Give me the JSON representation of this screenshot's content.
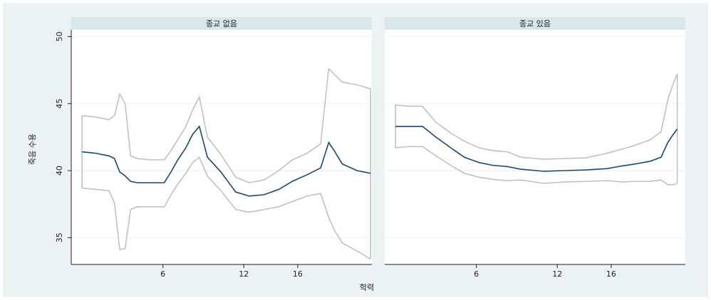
{
  "x_label": "학력",
  "y_label": "죽음 수용",
  "chart_data": [
    {
      "type": "line",
      "title": "종교 없음",
      "x": [
        0,
        1.0,
        2.0,
        2.4,
        2.8,
        3.2,
        3.6,
        4.1,
        5.1,
        6.1,
        6.6,
        7.1,
        7.7,
        8.2,
        8.7,
        9.3,
        10.3,
        11.4,
        12.4,
        13.5,
        14.6,
        15.6,
        16.7,
        17.7,
        18.3,
        18.7,
        19.3,
        20.4,
        21.4
      ],
      "series": [
        {
          "role": "mean",
          "color": "#1a476f",
          "values": [
            41.4,
            41.3,
            41.1,
            40.9,
            39.9,
            39.6,
            39.2,
            39.1,
            39.1,
            39.1,
            39.9,
            40.8,
            41.7,
            42.7,
            43.3,
            41.0,
            39.9,
            38.4,
            38.1,
            38.2,
            38.6,
            39.2,
            39.7,
            40.2,
            42.1,
            41.5,
            40.5,
            40.0,
            39.8
          ]
        },
        {
          "role": "upper",
          "color": "#bdbdbd",
          "values": [
            44.1,
            44.0,
            43.8,
            44.1,
            45.7,
            45.0,
            41.1,
            40.9,
            40.8,
            40.8,
            41.5,
            42.3,
            43.3,
            44.5,
            45.5,
            42.5,
            41.2,
            39.5,
            39.1,
            39.3,
            40.0,
            40.8,
            41.3,
            42.0,
            47.6,
            47.2,
            46.6,
            46.4,
            46.1
          ]
        },
        {
          "role": "lower",
          "color": "#bdbdbd",
          "values": [
            38.7,
            38.6,
            38.5,
            37.6,
            34.1,
            34.2,
            37.1,
            37.3,
            37.3,
            37.3,
            38.2,
            39.0,
            39.8,
            40.6,
            41.0,
            39.6,
            38.5,
            37.1,
            36.9,
            37.1,
            37.3,
            37.7,
            38.1,
            38.3,
            36.5,
            35.6,
            34.6,
            34.0,
            33.4
          ]
        }
      ],
      "xlim": [
        -0.8,
        21.5
      ],
      "xticks": [
        6,
        12,
        16
      ],
      "ylim": [
        33,
        50.5
      ],
      "yticks": [
        35,
        40,
        45,
        50
      ],
      "grid": true
    },
    {
      "type": "line",
      "title": "종교 있음",
      "x": [
        0,
        1.0,
        2.0,
        3.0,
        4.1,
        5.1,
        6.2,
        7.2,
        8.3,
        9.3,
        11.0,
        12.5,
        14.1,
        15.7,
        16.8,
        17.8,
        18.9,
        19.7,
        20.2,
        20.6,
        20.9
      ],
      "series": [
        {
          "role": "mean",
          "color": "#1a476f",
          "values": [
            43.3,
            43.3,
            43.3,
            42.5,
            41.7,
            41.0,
            40.6,
            40.4,
            40.3,
            40.1,
            39.95,
            40.0,
            40.05,
            40.15,
            40.35,
            40.5,
            40.7,
            41.0,
            42.1,
            42.7,
            43.1
          ]
        },
        {
          "role": "upper",
          "color": "#bdbdbd",
          "values": [
            44.9,
            44.8,
            44.8,
            43.6,
            42.8,
            42.2,
            41.7,
            41.5,
            41.4,
            41.0,
            40.85,
            40.9,
            40.95,
            41.3,
            41.6,
            41.9,
            42.3,
            42.9,
            45.3,
            46.5,
            47.2
          ]
        },
        {
          "role": "lower",
          "color": "#bdbdbd",
          "values": [
            41.7,
            41.8,
            41.8,
            41.1,
            40.4,
            39.8,
            39.5,
            39.35,
            39.25,
            39.3,
            39.05,
            39.15,
            39.2,
            39.25,
            39.15,
            39.2,
            39.2,
            39.3,
            38.95,
            38.95,
            39.05
          ]
        }
      ],
      "xlim": [
        -0.8,
        21.5
      ],
      "xticks": [
        6,
        12,
        16
      ],
      "ylim": [
        33,
        50.5
      ],
      "yticks": [
        35,
        40,
        45,
        50
      ],
      "grid": true
    }
  ]
}
